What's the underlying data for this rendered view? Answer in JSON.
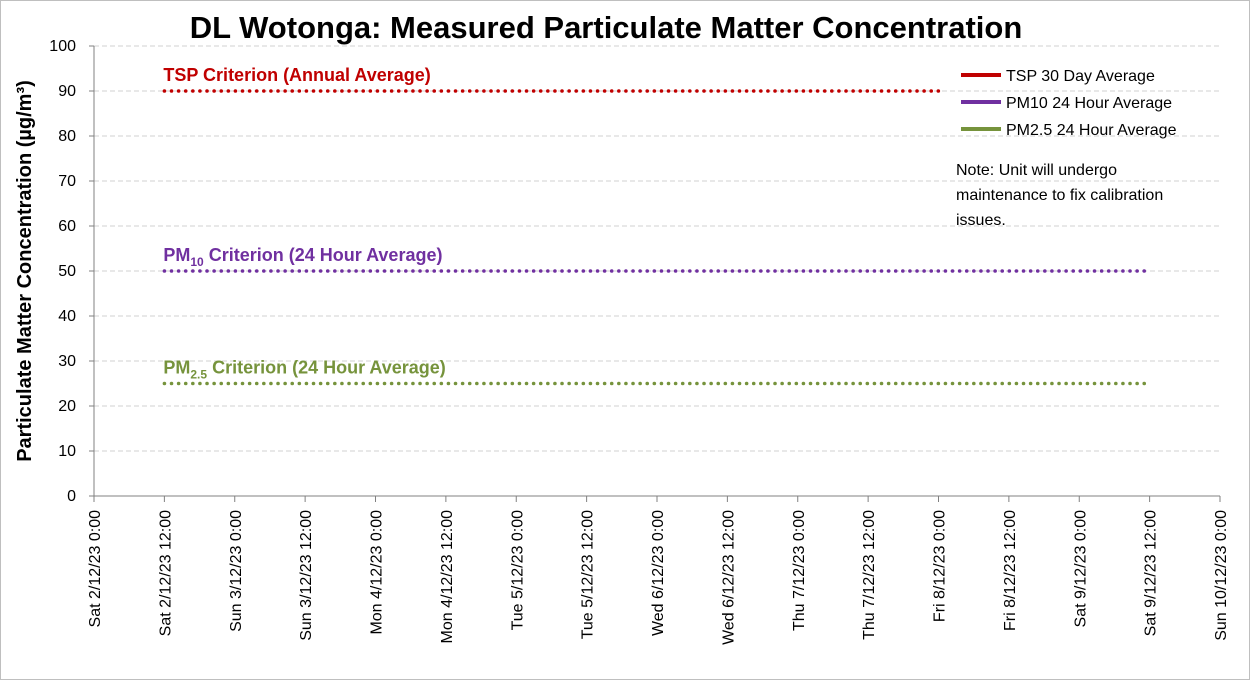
{
  "chart_data": {
    "type": "line",
    "title": "DL Wotonga: Measured Particulate Matter Concentration",
    "ylabel": "Particulate Matter Concentration (µg/m³)",
    "xlabel": "",
    "ylim": [
      0,
      100
    ],
    "y_ticks": [
      0,
      10,
      20,
      30,
      40,
      50,
      60,
      70,
      80,
      90,
      100
    ],
    "x_ticks": [
      "Sat 2/12/23 0:00",
      "Sat 2/12/23 12:00",
      "Sun 3/12/23 0:00",
      "Sun 3/12/23 12:00",
      "Mon 4/12/23 0:00",
      "Mon 4/12/23 12:00",
      "Tue 5/12/23 0:00",
      "Tue 5/12/23 12:00",
      "Wed 6/12/23 0:00",
      "Wed 6/12/23 12:00",
      "Thu 7/12/23 0:00",
      "Thu 7/12/23 12:00",
      "Fri 8/12/23 0:00",
      "Fri 8/12/23 12:00",
      "Sat 9/12/23 0:00",
      "Sat 9/12/23 12:00",
      "Sun 10/12/23 0:00"
    ],
    "grid": true,
    "legend_position": "top-right",
    "series": [
      {
        "name": "TSP 30 Day Average",
        "color": "#c00000",
        "values": []
      },
      {
        "name": "PM10 24 Hour Average",
        "color": "#7030a0",
        "values": []
      },
      {
        "name": "PM2.5 24 Hour Average",
        "color": "#76933c",
        "values": []
      }
    ],
    "criteria": [
      {
        "label_main": "TSP Criterion (Annual Average)",
        "label_sub": "",
        "label_tail": "",
        "value": 90,
        "x_start": "Sat 2/12/23 12:00",
        "x_end": "Fri 8/12/23 0:00",
        "color": "#c00000"
      },
      {
        "label_main": "PM",
        "label_sub": "10",
        "label_tail": " Criterion (24 Hour Average)",
        "value": 50,
        "x_start": "Sat 2/12/23 12:00",
        "x_end": "Sat 9/12/23 12:00",
        "color": "#7030a0"
      },
      {
        "label_main": "PM",
        "label_sub": "2.5",
        "label_tail": " Criterion (24 Hour Average)",
        "value": 25,
        "x_start": "Sat 2/12/23 12:00",
        "x_end": "Sat 9/12/23 12:00",
        "color": "#76933c"
      }
    ],
    "annotations": [
      "Note: Unit will undergo",
      "maintenance to fix calibration",
      "issues."
    ]
  }
}
